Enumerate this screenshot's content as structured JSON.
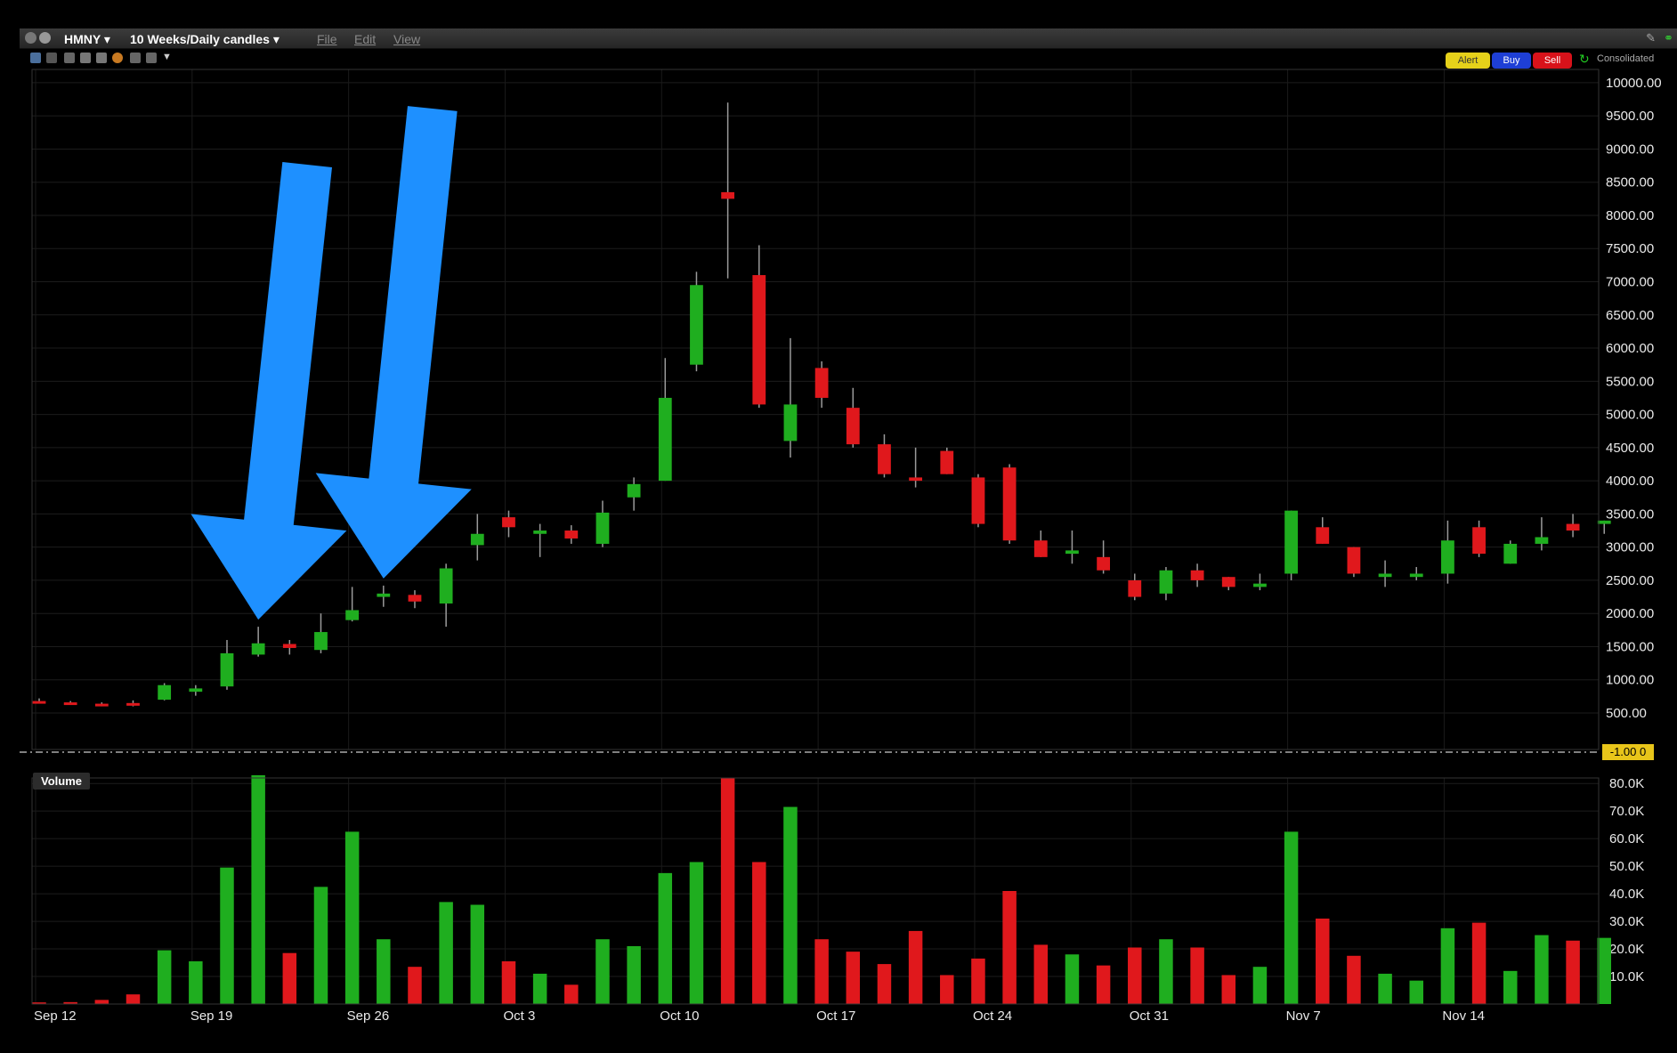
{
  "window": {
    "symbol": "HMNY",
    "period": "10 Weeks/Daily candles",
    "menu": [
      "File",
      "Edit",
      "View"
    ]
  },
  "toolbar": {
    "alert_label": "Alert",
    "buy_label": "Buy",
    "sell_label": "Sell",
    "consolidated_label": "Consolidated",
    "icons": [
      "grid-icon",
      "bars-icon",
      "cursor-icon",
      "zoom-in-icon",
      "zoom-out-icon",
      "globe-icon",
      "crosshair-icon",
      "move-icon",
      "dropdown-icon"
    ]
  },
  "colors": {
    "up": "#1fae1f",
    "down": "#e0181c",
    "arrow": "#1e90ff",
    "background": "#000000",
    "last_badge": "#e8c51a"
  },
  "volume_label": "Volume",
  "last_price_label": "-1.00 0",
  "annotations": [
    {
      "type": "arrow",
      "points_to": "Sep 21"
    },
    {
      "type": "arrow",
      "points_to": "Sep 27"
    }
  ],
  "chart_data": [
    {
      "type": "candlestick",
      "title": "",
      "ylim": [
        -50,
        10200
      ],
      "y_ticks": [
        "10000.00",
        "9500.00",
        "9000.00",
        "8500.00",
        "8000.00",
        "7500.00",
        "7000.00",
        "6500.00",
        "6000.00",
        "5500.00",
        "5000.00",
        "4500.00",
        "4000.00",
        "3500.00",
        "3000.00",
        "2500.00",
        "2000.00",
        "1500.00",
        "1000.00",
        "500.00"
      ],
      "x_ticks": [
        "Sep 12",
        "Sep 19",
        "Sep 26",
        "Oct 3",
        "Oct 10",
        "Oct 17",
        "Oct 24",
        "Oct 31",
        "Nov 7",
        "Nov 14"
      ],
      "grid": true,
      "candles": [
        {
          "x": "Sep 12",
          "o": 680,
          "h": 720,
          "l": 650,
          "c": 670
        },
        {
          "x": "Sep 13",
          "o": 660,
          "h": 680,
          "l": 630,
          "c": 640
        },
        {
          "x": "Sep 14",
          "o": 640,
          "h": 660,
          "l": 600,
          "c": 620
        },
        {
          "x": "Sep 15",
          "o": 650,
          "h": 690,
          "l": 600,
          "c": 630
        },
        {
          "x": "Sep 18",
          "o": 700,
          "h": 950,
          "l": 690,
          "c": 920
        },
        {
          "x": "Sep 19",
          "o": 820,
          "h": 920,
          "l": 760,
          "c": 870
        },
        {
          "x": "Sep 20",
          "o": 900,
          "h": 1600,
          "l": 850,
          "c": 1400
        },
        {
          "x": "Sep 21",
          "o": 1380,
          "h": 1800,
          "l": 1350,
          "c": 1550
        },
        {
          "x": "Sep 22",
          "o": 1540,
          "h": 1600,
          "l": 1380,
          "c": 1480
        },
        {
          "x": "Sep 25",
          "o": 1450,
          "h": 2000,
          "l": 1400,
          "c": 1720
        },
        {
          "x": "Sep 26",
          "o": 1900,
          "h": 2400,
          "l": 1880,
          "c": 2050
        },
        {
          "x": "Sep 27",
          "o": 2250,
          "h": 2420,
          "l": 2100,
          "c": 2300
        },
        {
          "x": "Sep 28",
          "o": 2280,
          "h": 2350,
          "l": 2080,
          "c": 2180
        },
        {
          "x": "Sep 29",
          "o": 2150,
          "h": 2750,
          "l": 1800,
          "c": 2680
        },
        {
          "x": "Oct 2",
          "o": 3030,
          "h": 3500,
          "l": 2800,
          "c": 3200
        },
        {
          "x": "Oct 3",
          "o": 3450,
          "h": 3550,
          "l": 3150,
          "c": 3300
        },
        {
          "x": "Oct 4",
          "o": 3200,
          "h": 3350,
          "l": 2850,
          "c": 3250
        },
        {
          "x": "Oct 5",
          "o": 3250,
          "h": 3330,
          "l": 3050,
          "c": 3130
        },
        {
          "x": "Oct 6",
          "o": 3050,
          "h": 3700,
          "l": 3000,
          "c": 3520
        },
        {
          "x": "Oct 9",
          "o": 3750,
          "h": 4050,
          "l": 3550,
          "c": 3950
        },
        {
          "x": "Oct 10",
          "o": 4000,
          "h": 5850,
          "l": 4000,
          "c": 5250
        },
        {
          "x": "Oct 11",
          "o": 5750,
          "h": 7150,
          "l": 5650,
          "c": 6950
        },
        {
          "x": "Oct 12",
          "o": 8350,
          "h": 9700,
          "l": 7050,
          "c": 8250
        },
        {
          "x": "Oct 13",
          "o": 7100,
          "h": 7550,
          "l": 5100,
          "c": 5150
        },
        {
          "x": "Oct 16",
          "o": 4600,
          "h": 6150,
          "l": 4350,
          "c": 5150
        },
        {
          "x": "Oct 17",
          "o": 5700,
          "h": 5800,
          "l": 5100,
          "c": 5250
        },
        {
          "x": "Oct 18",
          "o": 5100,
          "h": 5400,
          "l": 4500,
          "c": 4550
        },
        {
          "x": "Oct 19",
          "o": 4550,
          "h": 4700,
          "l": 4050,
          "c": 4100
        },
        {
          "x": "Oct 20",
          "o": 4050,
          "h": 4500,
          "l": 3900,
          "c": 4000
        },
        {
          "x": "Oct 23",
          "o": 4450,
          "h": 4500,
          "l": 4100,
          "c": 4100
        },
        {
          "x": "Oct 24",
          "o": 4050,
          "h": 4100,
          "l": 3300,
          "c": 3350
        },
        {
          "x": "Oct 25",
          "o": 4200,
          "h": 4250,
          "l": 3050,
          "c": 3100
        },
        {
          "x": "Oct 26",
          "o": 3100,
          "h": 3250,
          "l": 2850,
          "c": 2850
        },
        {
          "x": "Oct 27",
          "o": 2900,
          "h": 3250,
          "l": 2750,
          "c": 2950
        },
        {
          "x": "Oct 30",
          "o": 2850,
          "h": 3100,
          "l": 2600,
          "c": 2650
        },
        {
          "x": "Oct 31",
          "o": 2500,
          "h": 2600,
          "l": 2200,
          "c": 2250
        },
        {
          "x": "Nov 1",
          "o": 2300,
          "h": 2700,
          "l": 2200,
          "c": 2650
        },
        {
          "x": "Nov 2",
          "o": 2650,
          "h": 2750,
          "l": 2400,
          "c": 2500
        },
        {
          "x": "Nov 3",
          "o": 2550,
          "h": 2550,
          "l": 2350,
          "c": 2400
        },
        {
          "x": "Nov 6",
          "o": 2400,
          "h": 2600,
          "l": 2350,
          "c": 2450
        },
        {
          "x": "Nov 7",
          "o": 2600,
          "h": 3550,
          "l": 2500,
          "c": 3550
        },
        {
          "x": "Nov 8",
          "o": 3300,
          "h": 3450,
          "l": 3050,
          "c": 3050
        },
        {
          "x": "Nov 9",
          "o": 3000,
          "h": 3000,
          "l": 2550,
          "c": 2600
        },
        {
          "x": "Nov 10",
          "o": 2550,
          "h": 2800,
          "l": 2400,
          "c": 2600
        },
        {
          "x": "Nov 13",
          "o": 2550,
          "h": 2700,
          "l": 2500,
          "c": 2600
        },
        {
          "x": "Nov 14",
          "o": 2600,
          "h": 3400,
          "l": 2450,
          "c": 3100
        },
        {
          "x": "Nov 15",
          "o": 3300,
          "h": 3400,
          "l": 2850,
          "c": 2900
        },
        {
          "x": "Nov 16",
          "o": 2750,
          "h": 3100,
          "l": 2750,
          "c": 3050
        },
        {
          "x": "Nov 17",
          "o": 3050,
          "h": 3450,
          "l": 2950,
          "c": 3150
        },
        {
          "x": "Nov 20",
          "o": 3350,
          "h": 3500,
          "l": 3150,
          "c": 3250
        },
        {
          "x": "Nov 21",
          "o": 3350,
          "h": 3400,
          "l": 3200,
          "c": 3400
        }
      ]
    },
    {
      "type": "bar",
      "title": "Volume",
      "ylim": [
        0,
        82000
      ],
      "y_ticks": [
        "80.0K",
        "70.0K",
        "60.0K",
        "50.0K",
        "40.0K",
        "30.0K",
        "20.0K",
        "10.0K"
      ],
      "values": [
        600,
        700,
        1500,
        3500,
        19500,
        15500,
        49500,
        83000,
        18500,
        42500,
        62500,
        23500,
        13500,
        37000,
        36000,
        15500,
        11000,
        7000,
        23500,
        21000,
        47500,
        51500,
        82000,
        51500,
        71500,
        23500,
        19000,
        14500,
        26500,
        10500,
        16500,
        41000,
        21500,
        18000,
        14000,
        20500,
        23500,
        20500,
        10500,
        13500,
        62500,
        31000,
        17500,
        11000,
        8500,
        27500,
        29500,
        12000,
        25000,
        23000,
        24000
      ],
      "colors_by_candle": true
    }
  ]
}
